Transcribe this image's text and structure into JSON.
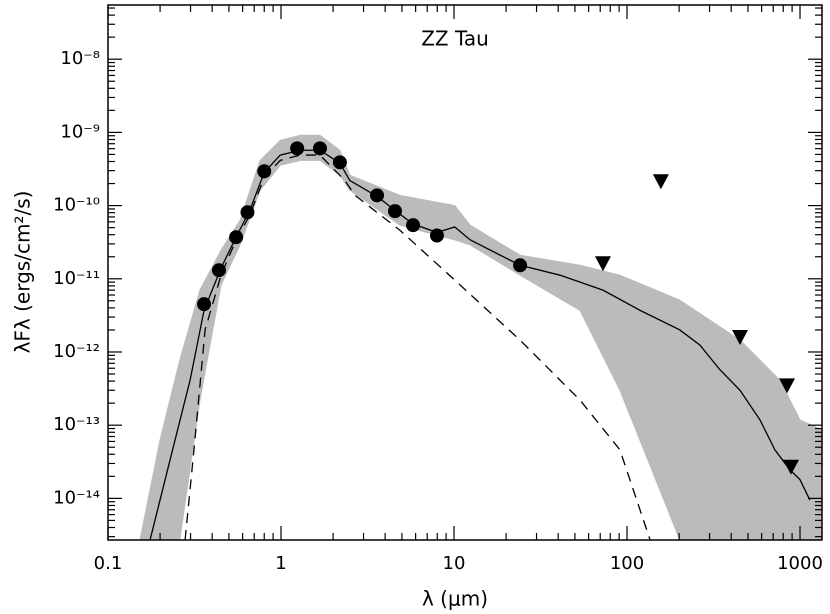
{
  "chart_data": {
    "type": "sed",
    "title": "ZZ Tau",
    "xlabel": "λ (μm)",
    "ylabel": "λFλ (ergs/cm²/s)",
    "log_x": true,
    "log_y": true,
    "xlim": [
      0.1,
      1340
    ],
    "ylim": [
      2.7e-15,
      5.5e-08
    ],
    "xticks": [
      0.1,
      1,
      10,
      100,
      1000
    ],
    "yticks": [
      {
        "value": 1e-14,
        "label": "10⁻¹⁴"
      },
      {
        "value": 1e-13,
        "label": "10⁻¹³"
      },
      {
        "value": 1e-12,
        "label": "10⁻¹²"
      },
      {
        "value": 1e-11,
        "label": "10⁻¹¹"
      },
      {
        "value": 1e-10,
        "label": "10⁻¹⁰"
      },
      {
        "value": 1e-09,
        "label": "10⁻⁹"
      },
      {
        "value": 1e-08,
        "label": "10⁻⁸"
      }
    ],
    "model_band": {
      "color": "#bbbbbb",
      "x": [
        0.153,
        0.2,
        0.26,
        0.34,
        0.45,
        0.58,
        0.757,
        0.99,
        1.29,
        1.68,
        2.19,
        2.5,
        4.87,
        10.1,
        12.4,
        24.1,
        53.5,
        91,
        202,
        450,
        766,
        1000,
        1340
      ],
      "upper": [
        2.7e-15,
        6.3e-14,
        7.8e-13,
        7e-12,
        2.45e-11,
        6.3e-11,
        4.15e-10,
        7.8e-10,
        9.1e-10,
        9.1e-10,
        5.7e-10,
        2.6e-10,
        1.38e-10,
        1e-10,
        5.4e-11,
        2.1e-11,
        1.53e-11,
        1.12e-11,
        5.1e-12,
        1.45e-12,
        4.1e-13,
        1.18e-13,
        8.6e-14
      ],
      "lower": [
        2.7e-15,
        2.7e-15,
        2.7e-15,
        2.2e-13,
        8.2e-12,
        2.9e-11,
        1.62e-10,
        3.55e-10,
        4.15e-10,
        4.15e-10,
        2.6e-10,
        1.62e-10,
        5.4e-11,
        3.4e-11,
        2.9e-11,
        1.12e-11,
        3.7e-12,
        3e-13,
        2.7e-15,
        2.7e-15,
        2.7e-15,
        2.7e-15,
        2.7e-15
      ]
    },
    "series": [
      {
        "color": "#000000",
        "style": "solid",
        "x": [
          0.175,
          0.228,
          0.298,
          0.359,
          0.45,
          0.55,
          0.66,
          0.8,
          0.99,
          1.29,
          1.68,
          2.19,
          2.5,
          3.59,
          4.56,
          5.8,
          7.97,
          10.1,
          12.4,
          24.1,
          41,
          72.6,
          119,
          202,
          264,
          345,
          450,
          587,
          716,
          875,
          1000,
          1140
        ],
        "values": [
          2.7e-15,
          3.3e-14,
          4.1e-13,
          3.7e-12,
          1.4e-11,
          3.7e-11,
          8.6e-11,
          2.84e-10,
          4.9e-10,
          5.7e-10,
          5.7e-10,
          3.8e-10,
          2.2e-10,
          1.34e-10,
          8.6e-11,
          5.6e-11,
          4.3e-11,
          5.1e-11,
          3.4e-11,
          1.53e-11,
          1.12e-11,
          7e-12,
          3.7e-12,
          2e-12,
          1.24e-12,
          5.7e-13,
          3e-13,
          1.18e-13,
          4.6e-14,
          2.45e-14,
          1.8e-14,
          9.5e-15
        ]
      },
      {
        "color": "#000000",
        "style": "dashed",
        "x": [
          0.279,
          0.318,
          0.364,
          0.45,
          0.55,
          0.66,
          0.8,
          0.99,
          1.29,
          1.68,
          2.34,
          2.68,
          4.87,
          10.1,
          24.1,
          53.5,
          91,
          136
        ],
        "values": [
          2.7e-15,
          6.3e-14,
          2e-12,
          1.12e-11,
          3.4e-11,
          7.4e-11,
          2.43e-10,
          4.15e-10,
          4.9e-10,
          4.9e-10,
          2.2e-10,
          1.38e-10,
          4.6e-11,
          9.6e-12,
          1.45e-12,
          2.2e-13,
          4.6e-14,
          2.7e-15
        ]
      }
    ],
    "photometry": {
      "marker": "circle",
      "color": "#000000",
      "x": [
        0.359,
        0.438,
        0.55,
        0.64,
        0.8,
        1.24,
        1.68,
        2.19,
        3.59,
        4.56,
        5.8,
        7.97,
        24.1
      ],
      "values": [
        4.5e-12,
        1.31e-11,
        3.7e-11,
        8.1e-11,
        2.94e-10,
        6.05e-10,
        6.05e-10,
        3.9e-10,
        1.38e-10,
        8.4e-11,
        5.4e-11,
        3.9e-11,
        1.53e-11
      ]
    },
    "upper_limits": {
      "marker": "triangle-down",
      "color": "#000000",
      "x": [
        72.6,
        157,
        450,
        841,
        887
      ],
      "values": [
        1.63e-11,
        2.15e-10,
        1.6e-12,
        3.5e-13,
        2.7e-14
      ]
    }
  }
}
